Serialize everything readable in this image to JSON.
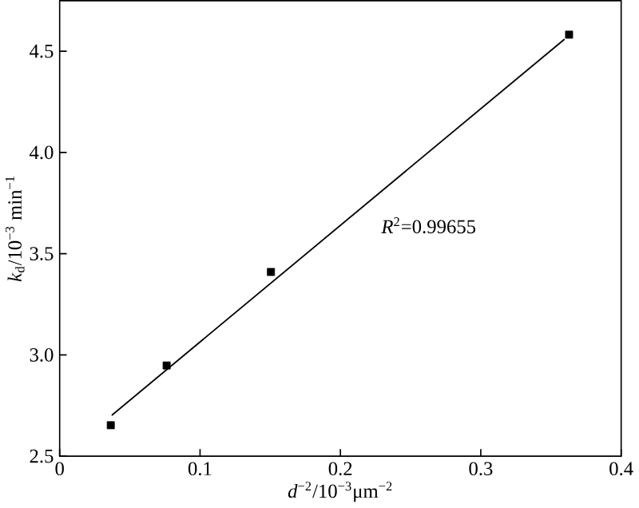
{
  "chart_data": {
    "type": "scatter",
    "xlabel": "*d*$^{−2}$/10$^{−3}$μm$^{−2}$",
    "ylabel": "*k*$_{d}$/10$^{−3}$ min$^{−1}$",
    "annotations": [
      "*R*$^{2}$=0.99655"
    ],
    "xlim": [
      0,
      0.4
    ],
    "ylim": [
      2.5,
      4.75
    ],
    "xticks": [
      0,
      0.1,
      0.2,
      0.3,
      0.4
    ],
    "yticks": [
      2.5,
      {
        "value": 3,
        "label": "3.0"
      },
      3.5,
      {
        "value": 4,
        "label": "4.0"
      },
      4.5
    ],
    "grid": false,
    "series": [
      {
        "marker": "square",
        "color": "#000000",
        "x": [
          0.0364,
          0.0762,
          0.1505,
          0.3629
        ],
        "values": [
          2.653,
          2.948,
          3.41,
          4.582
        ]
      },
      {
        "type": "line",
        "color": "#000000",
        "x": [
          0.0371,
          0.3597
        ],
        "values": [
          2.702,
          4.56
        ]
      }
    ]
  }
}
